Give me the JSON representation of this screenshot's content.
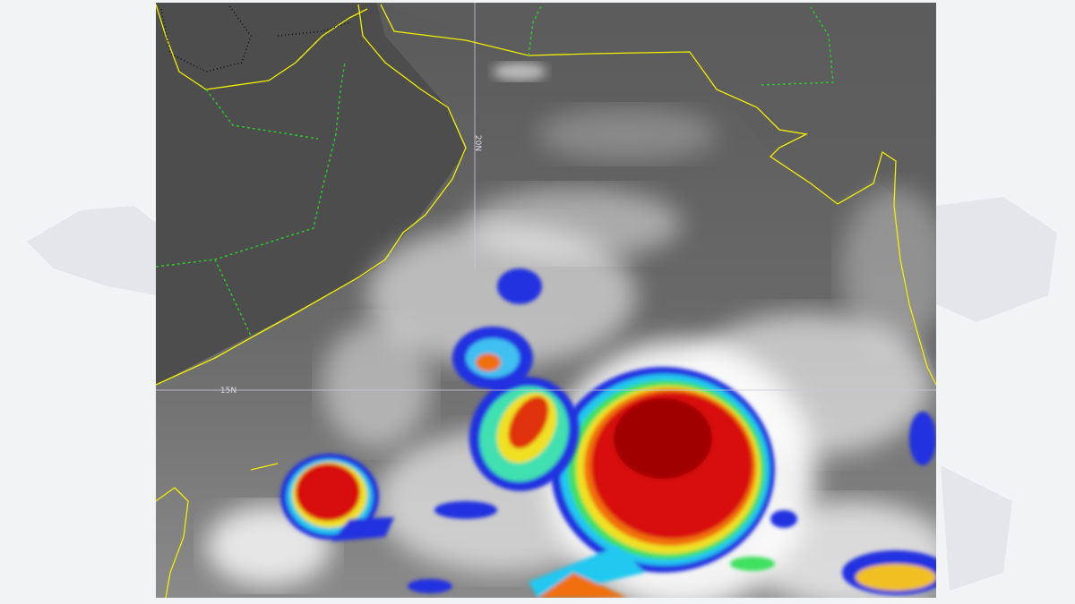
{
  "map": {
    "grid_labels": [
      "20N",
      "15N"
    ]
  }
}
